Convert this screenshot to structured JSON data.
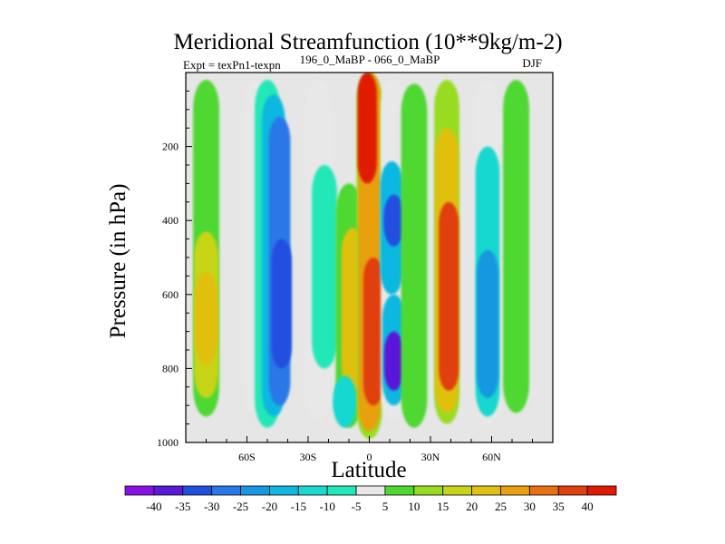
{
  "chart_data": {
    "type": "heatmap",
    "title": "Meridional Streamfunction (10**9kg/m-2)",
    "subtitle_left": "Expt = texPn1-texpn",
    "subtitle_center": "196_0_MaBP - 066_0_MaBP",
    "subtitle_right": "DJF",
    "xlabel": "Latitude",
    "ylabel": "Pressure (in hPa)",
    "xlim": [
      -90,
      90
    ],
    "ylim": [
      1000,
      0
    ],
    "x_ticks": [
      {
        "value": -60,
        "label": "60S"
      },
      {
        "value": -30,
        "label": "30S"
      },
      {
        "value": 0,
        "label": "0"
      },
      {
        "value": 30,
        "label": "30N"
      },
      {
        "value": 60,
        "label": "60N"
      }
    ],
    "y_ticks": [
      {
        "value": 200,
        "label": "200"
      },
      {
        "value": 400,
        "label": "400"
      },
      {
        "value": 600,
        "label": "600"
      },
      {
        "value": 800,
        "label": "800"
      },
      {
        "value": 1000,
        "label": "1000"
      }
    ],
    "missing_color": "#e6e6e6",
    "colorbar": {
      "labels": [
        "-40",
        "-35",
        "-30",
        "-25",
        "-20",
        "-15",
        "-10",
        "-5",
        "5",
        "10",
        "15",
        "20",
        "25",
        "30",
        "35",
        "40"
      ],
      "colors": [
        "#8a10e8",
        "#5a18d8",
        "#2050e0",
        "#2a78e8",
        "#1898e0",
        "#10b8e0",
        "#18d8d0",
        "#20e8b8",
        "#e8e8e8",
        "#50d830",
        "#98dc20",
        "#c8d418",
        "#e0c010",
        "#e8a010",
        "#e87010",
        "#e04010",
        "#e01a00"
      ]
    },
    "series": [
      {
        "lat": -80,
        "p_top": 20,
        "p_bot": 930,
        "value": 5
      },
      {
        "lat": -80,
        "p_top": 430,
        "p_bot": 880,
        "value": 15
      },
      {
        "lat": -80,
        "p_top": 540,
        "p_bot": 790,
        "value": 20
      },
      {
        "lat": -55,
        "p_top": 20,
        "p_bot": 930,
        "value": -5
      },
      {
        "lat": -50,
        "p_top": 20,
        "p_bot": 960,
        "value": -10
      },
      {
        "lat": -47,
        "p_top": 60,
        "p_bot": 930,
        "value": -20
      },
      {
        "lat": -44,
        "p_top": 120,
        "p_bot": 900,
        "value": -28
      },
      {
        "lat": -43,
        "p_top": 450,
        "p_bot": 800,
        "value": -35
      },
      {
        "lat": -25,
        "p_top": 20,
        "p_bot": 940,
        "value": -5
      },
      {
        "lat": -22,
        "p_top": 250,
        "p_bot": 800,
        "value": -10
      },
      {
        "lat": -10,
        "p_top": 300,
        "p_bot": 960,
        "value": 5
      },
      {
        "lat": -8,
        "p_top": 420,
        "p_bot": 860,
        "value": 20
      },
      {
        "lat": -12,
        "p_top": 820,
        "p_bot": 960,
        "value": -15
      },
      {
        "lat": 0,
        "p_top": 0,
        "p_bot": 990,
        "value": 10
      },
      {
        "lat": 0,
        "p_top": 0,
        "p_bot": 970,
        "value": 25
      },
      {
        "lat": -1,
        "p_top": 0,
        "p_bot": 300,
        "value": 40
      },
      {
        "lat": 2,
        "p_top": 500,
        "p_bot": 900,
        "value": 35
      },
      {
        "lat": 12,
        "p_top": 20,
        "p_bot": 940,
        "value": -5
      },
      {
        "lat": 11,
        "p_top": 240,
        "p_bot": 600,
        "value": -20
      },
      {
        "lat": 12,
        "p_top": 330,
        "p_bot": 470,
        "value": -35
      },
      {
        "lat": 12,
        "p_top": 600,
        "p_bot": 900,
        "value": -20
      },
      {
        "lat": 12,
        "p_top": 700,
        "p_bot": 860,
        "value": -40
      },
      {
        "lat": 22,
        "p_top": 30,
        "p_bot": 960,
        "value": 5
      },
      {
        "lat": 38,
        "p_top": 20,
        "p_bot": 950,
        "value": 10
      },
      {
        "lat": 38,
        "p_top": 150,
        "p_bot": 920,
        "value": 20
      },
      {
        "lat": 39,
        "p_top": 350,
        "p_bot": 860,
        "value": 35
      },
      {
        "lat": 58,
        "p_top": 20,
        "p_bot": 950,
        "value": -5
      },
      {
        "lat": 58,
        "p_top": 200,
        "p_bot": 930,
        "value": -15
      },
      {
        "lat": 58,
        "p_top": 480,
        "p_bot": 880,
        "value": -25
      },
      {
        "lat": 72,
        "p_top": 20,
        "p_bot": 920,
        "value": 5
      }
    ]
  }
}
